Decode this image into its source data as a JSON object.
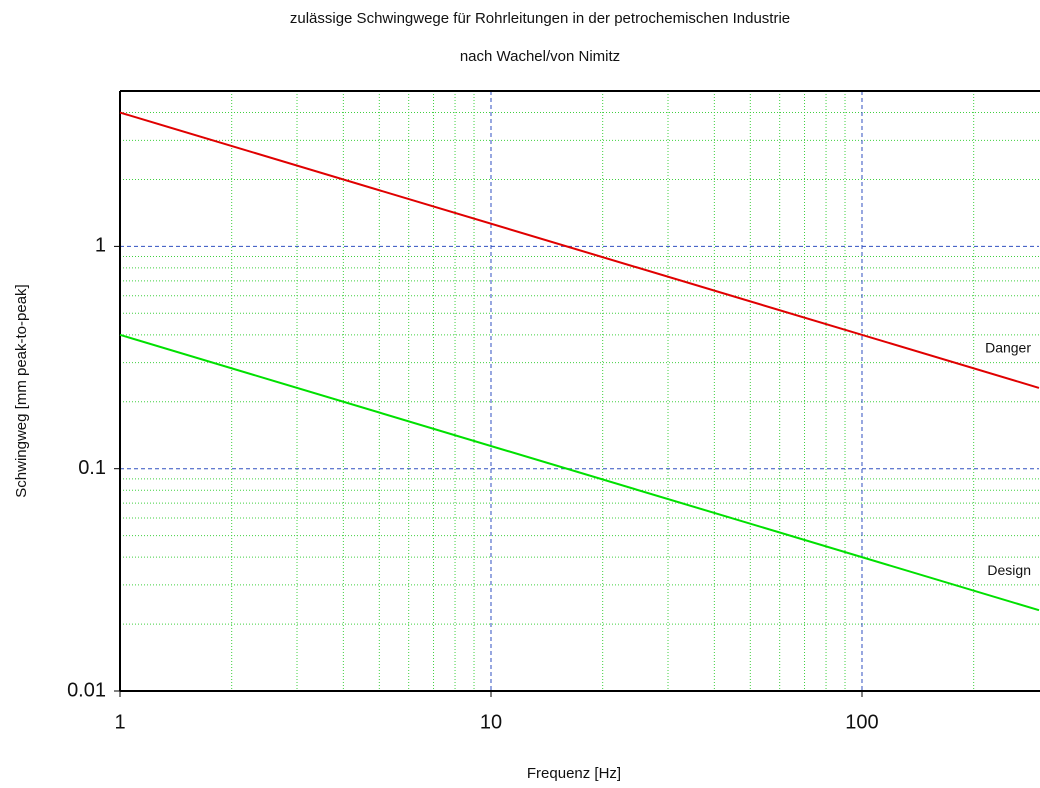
{
  "chart_data": {
    "type": "line",
    "title": "zulässige Schwingwege für Rohrleitungen in der petrochemischen Industrie",
    "subtitle": "nach Wachel/von Nimitz",
    "x_label": "Frequenz [Hz]",
    "y_label": "Schwingweg [mm peak-to-peak]",
    "x": [
      1,
      300
    ],
    "series": [
      {
        "name": "Danger",
        "color": "#e00000",
        "values": [
          4,
          0.2309
        ]
      },
      {
        "name": "Design",
        "color": "#00e000",
        "values": [
          0.4,
          0.02309
        ]
      }
    ],
    "xlim": [
      1,
      300
    ],
    "ylim": [
      0.01,
      5
    ],
    "xticks": [
      1,
      10,
      100
    ],
    "yticks": [
      0.01,
      0.1,
      1
    ],
    "xminorticks": [
      2,
      3,
      4,
      5,
      6,
      7,
      8,
      9,
      20,
      30,
      40,
      50,
      60,
      70,
      80,
      90,
      200
    ],
    "yminorticks": [
      0.02,
      0.03,
      0.04,
      0.05,
      0.06,
      0.07,
      0.08,
      0.09,
      0.2,
      0.3,
      0.4,
      0.5,
      0.6,
      0.7,
      0.8,
      0.9,
      2,
      3,
      4
    ],
    "x_log": true,
    "y_log": true,
    "grid": true,
    "major_grid_color": "#3050c0",
    "minor_grid_color": "#40d040"
  }
}
